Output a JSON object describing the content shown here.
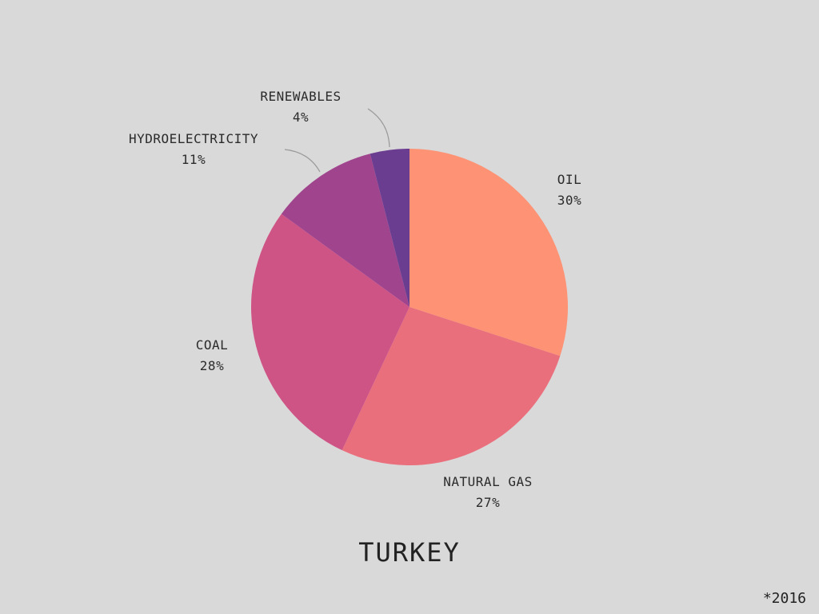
{
  "chart_data": {
    "type": "pie",
    "title": "TURKEY",
    "slices": [
      {
        "label": "OIL",
        "value": 30,
        "value_label": "30%",
        "color": "#fd9274"
      },
      {
        "label": "NATURAL GAS",
        "value": 27,
        "value_label": "27%",
        "color": "#ea6f7d"
      },
      {
        "label": "COAL",
        "value": 28,
        "value_label": "28%",
        "color": "#cf5486"
      },
      {
        "label": "HYDROELECTRICITY",
        "value": 11,
        "value_label": "11%",
        "color": "#a0448e"
      },
      {
        "label": "RENEWABLES",
        "value": 4,
        "value_label": "4%",
        "color": "#6a3d91"
      }
    ],
    "start": "12 o'clock",
    "direction": "clockwise"
  },
  "footnote": "*2016",
  "colors": {
    "background": "#d9d9d9",
    "text": "#2b2b2b",
    "leader_line": "#9a9a9a"
  }
}
